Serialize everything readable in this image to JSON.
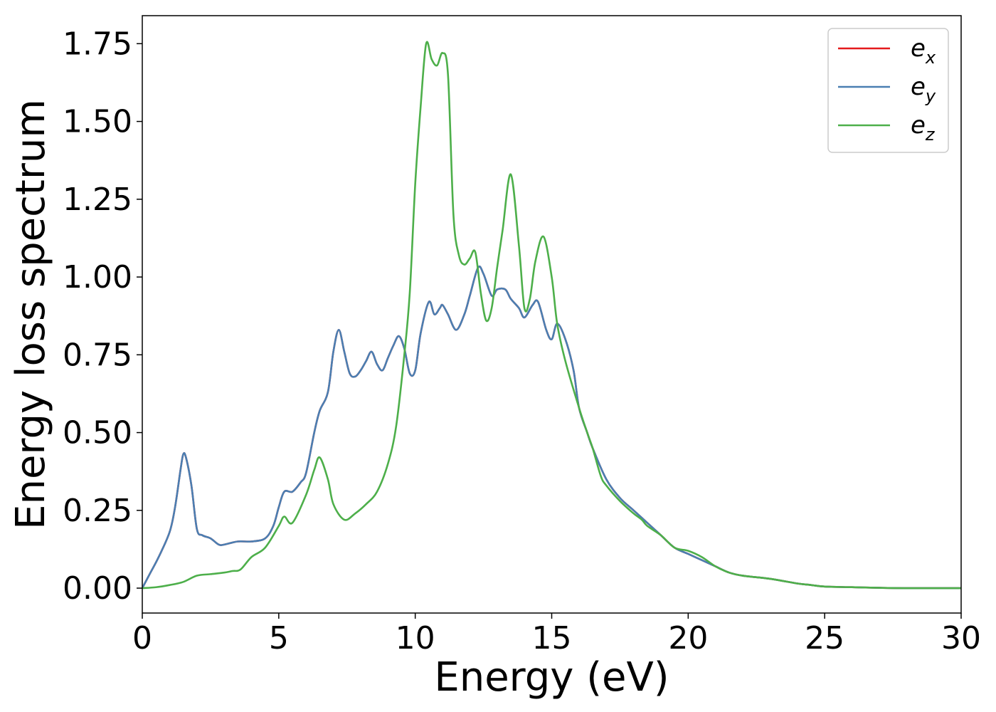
{
  "chart_data": {
    "type": "line",
    "xlabel": "Energy (eV)",
    "ylabel": "Energy loss spectrum",
    "xlim": [
      0,
      30
    ],
    "ylim": [
      -0.08,
      1.84
    ],
    "xticks": [
      0,
      5,
      10,
      15,
      20,
      25,
      30
    ],
    "xtick_labels": [
      "0",
      "5",
      "10",
      "15",
      "20",
      "25",
      "30"
    ],
    "yticks": [
      0.0,
      0.25,
      0.5,
      0.75,
      1.0,
      1.25,
      1.5,
      1.75
    ],
    "ytick_labels": [
      "0.00",
      "0.25",
      "0.50",
      "0.75",
      "1.00",
      "1.25",
      "1.50",
      "1.75"
    ],
    "grid": false,
    "legend_position": "top-right",
    "series": [
      {
        "name": "e",
        "subscript": "x",
        "color": "#e41a1c",
        "x": [
          0,
          0.3,
          0.6,
          1.0,
          1.2,
          1.4,
          1.5,
          1.6,
          1.8,
          2.0,
          2.2,
          2.5,
          2.8,
          3.0,
          3.5,
          4.0,
          4.5,
          4.8,
          5.0,
          5.2,
          5.5,
          5.8,
          6.0,
          6.3,
          6.5,
          6.8,
          7.0,
          7.2,
          7.4,
          7.6,
          7.8,
          8.0,
          8.2,
          8.4,
          8.6,
          8.8,
          9.0,
          9.2,
          9.4,
          9.6,
          9.8,
          10.0,
          10.2,
          10.5,
          10.7,
          10.9,
          11.0,
          11.2,
          11.5,
          11.8,
          12.0,
          12.3,
          12.5,
          12.8,
          13.0,
          13.3,
          13.5,
          13.8,
          14.0,
          14.3,
          14.5,
          14.8,
          15.0,
          15.2,
          15.5,
          15.8,
          16.0,
          16.3,
          16.5,
          17.0,
          17.5,
          18.0,
          18.5,
          19.0,
          19.5,
          20.0,
          20.5,
          21.0,
          21.5,
          22.0,
          23.0,
          24.0,
          24.5,
          25.0,
          26.0,
          27.0,
          28.0,
          30.0
        ],
        "y": [
          0.0,
          0.05,
          0.1,
          0.18,
          0.26,
          0.38,
          0.43,
          0.42,
          0.33,
          0.19,
          0.17,
          0.16,
          0.14,
          0.14,
          0.15,
          0.15,
          0.16,
          0.2,
          0.26,
          0.31,
          0.31,
          0.34,
          0.37,
          0.5,
          0.57,
          0.63,
          0.76,
          0.83,
          0.76,
          0.69,
          0.68,
          0.7,
          0.73,
          0.76,
          0.72,
          0.7,
          0.74,
          0.78,
          0.81,
          0.77,
          0.69,
          0.7,
          0.82,
          0.92,
          0.88,
          0.9,
          0.91,
          0.88,
          0.83,
          0.88,
          0.94,
          1.03,
          1.01,
          0.94,
          0.96,
          0.96,
          0.93,
          0.9,
          0.87,
          0.91,
          0.92,
          0.83,
          0.8,
          0.85,
          0.8,
          0.7,
          0.58,
          0.5,
          0.45,
          0.35,
          0.29,
          0.25,
          0.21,
          0.17,
          0.13,
          0.11,
          0.09,
          0.07,
          0.05,
          0.04,
          0.03,
          0.015,
          0.01,
          0.005,
          0.003,
          0.001,
          0.0,
          0.0
        ]
      },
      {
        "name": "e",
        "subscript": "y",
        "color": "#4a7fb2",
        "x": [
          0,
          0.3,
          0.6,
          1.0,
          1.2,
          1.4,
          1.5,
          1.6,
          1.8,
          2.0,
          2.2,
          2.5,
          2.8,
          3.0,
          3.5,
          4.0,
          4.5,
          4.8,
          5.0,
          5.2,
          5.5,
          5.8,
          6.0,
          6.3,
          6.5,
          6.8,
          7.0,
          7.2,
          7.4,
          7.6,
          7.8,
          8.0,
          8.2,
          8.4,
          8.6,
          8.8,
          9.0,
          9.2,
          9.4,
          9.6,
          9.8,
          10.0,
          10.2,
          10.5,
          10.7,
          10.9,
          11.0,
          11.2,
          11.5,
          11.8,
          12.0,
          12.3,
          12.5,
          12.8,
          13.0,
          13.3,
          13.5,
          13.8,
          14.0,
          14.3,
          14.5,
          14.8,
          15.0,
          15.2,
          15.5,
          15.8,
          16.0,
          16.3,
          16.5,
          17.0,
          17.5,
          18.0,
          18.5,
          19.0,
          19.5,
          20.0,
          20.5,
          21.0,
          21.5,
          22.0,
          23.0,
          24.0,
          24.5,
          25.0,
          26.0,
          27.0,
          28.0,
          30.0
        ],
        "y": [
          0.0,
          0.05,
          0.1,
          0.18,
          0.26,
          0.38,
          0.43,
          0.42,
          0.33,
          0.19,
          0.17,
          0.16,
          0.14,
          0.14,
          0.15,
          0.15,
          0.16,
          0.2,
          0.26,
          0.31,
          0.31,
          0.34,
          0.37,
          0.5,
          0.57,
          0.63,
          0.76,
          0.83,
          0.76,
          0.69,
          0.68,
          0.7,
          0.73,
          0.76,
          0.72,
          0.7,
          0.74,
          0.78,
          0.81,
          0.77,
          0.69,
          0.7,
          0.82,
          0.92,
          0.88,
          0.9,
          0.91,
          0.88,
          0.83,
          0.88,
          0.94,
          1.03,
          1.01,
          0.94,
          0.96,
          0.96,
          0.93,
          0.9,
          0.87,
          0.91,
          0.92,
          0.83,
          0.8,
          0.85,
          0.8,
          0.7,
          0.58,
          0.5,
          0.45,
          0.35,
          0.29,
          0.25,
          0.21,
          0.17,
          0.13,
          0.11,
          0.09,
          0.07,
          0.05,
          0.04,
          0.03,
          0.015,
          0.01,
          0.005,
          0.003,
          0.001,
          0.0,
          0.0
        ]
      },
      {
        "name": "e",
        "subscript": "z",
        "color": "#4daf4a",
        "x": [
          0,
          0.5,
          1.0,
          1.5,
          2.0,
          2.5,
          3.0,
          3.3,
          3.6,
          4.0,
          4.5,
          5.0,
          5.2,
          5.5,
          6.0,
          6.3,
          6.5,
          6.8,
          7.0,
          7.4,
          7.8,
          8.2,
          8.6,
          9.0,
          9.3,
          9.6,
          9.8,
          10.0,
          10.2,
          10.4,
          10.6,
          10.8,
          11.0,
          11.2,
          11.4,
          11.6,
          11.8,
          12.0,
          12.2,
          12.4,
          12.6,
          12.8,
          13.0,
          13.2,
          13.5,
          13.8,
          14.0,
          14.2,
          14.4,
          14.7,
          15.0,
          15.2,
          15.5,
          16.0,
          16.3,
          16.5,
          16.8,
          17.0,
          17.5,
          18.0,
          18.3,
          18.5,
          19.0,
          19.5,
          20.0,
          20.5,
          21.0,
          21.5,
          22.0,
          23.0,
          24.0,
          24.5,
          25.0,
          26.0,
          27.0,
          28.0,
          30.0
        ],
        "y": [
          0.0,
          0.003,
          0.01,
          0.02,
          0.04,
          0.045,
          0.05,
          0.055,
          0.06,
          0.1,
          0.13,
          0.2,
          0.23,
          0.21,
          0.3,
          0.38,
          0.42,
          0.35,
          0.27,
          0.22,
          0.24,
          0.27,
          0.31,
          0.4,
          0.52,
          0.75,
          0.95,
          1.3,
          1.55,
          1.75,
          1.7,
          1.68,
          1.72,
          1.65,
          1.2,
          1.07,
          1.04,
          1.06,
          1.08,
          0.95,
          0.86,
          0.9,
          1.03,
          1.15,
          1.33,
          1.1,
          0.9,
          0.93,
          1.05,
          1.13,
          1.0,
          0.85,
          0.73,
          0.58,
          0.5,
          0.45,
          0.36,
          0.33,
          0.28,
          0.24,
          0.22,
          0.2,
          0.17,
          0.13,
          0.12,
          0.1,
          0.07,
          0.05,
          0.04,
          0.03,
          0.015,
          0.01,
          0.005,
          0.003,
          0.001,
          0.0,
          0.0
        ]
      }
    ]
  }
}
